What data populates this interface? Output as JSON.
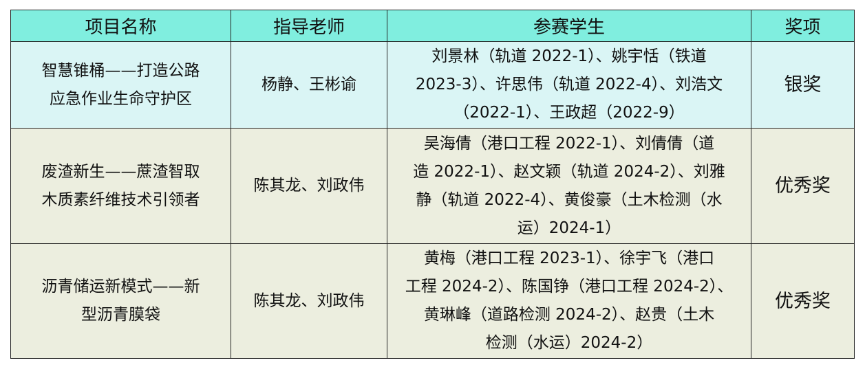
{
  "header": [
    "项目名称",
    "指导老师",
    "参赛学生",
    "奖项"
  ],
  "rows": [
    {
      "project": [
        "智慧锥桶——打造公路",
        "应急作业生命守护区"
      ],
      "advisors": "杨静、王彬谕",
      "students": [
        "刘景林（轨道 2022-1）、姚宇恬（铁道",
        "2023-3）、许思伟（轨道 2022-4）、刘浩文",
        "（2022-1）、王政超（2022-9）"
      ],
      "award": "银奖"
    },
    {
      "project": [
        "废渣新生——蔗渣智取",
        "木质素纤维技术引领者"
      ],
      "advisors": "陈其龙、刘政伟",
      "students": [
        "吴海倩（港口工程 2022-1）、刘倩倩（道",
        "造 2022-1）、赵文颖（轨道 2024-2）、刘雅",
        "静（轨道 2022-4）、黄俊豪（土木检测（水",
        "运）2024-1）"
      ],
      "award": "优秀奖"
    },
    {
      "project": [
        "沥青储运新模式——新",
        "型沥青膜袋"
      ],
      "advisors": "陈其龙、刘政伟",
      "students": [
        "黄梅（港口工程 2023-1）、徐宇飞（港口",
        "工程 2024-2）、陈国铮（港口工程 2024-2）、",
        "黄琳峰（道路检测 2024-2）、赵贵（土木",
        "检测（水运）2024-2）"
      ],
      "award": "优秀奖"
    }
  ],
  "colors": {
    "header_bg": "#80eedf",
    "row1_bg": "#daf5f5",
    "row_bg": "#eceedf"
  }
}
